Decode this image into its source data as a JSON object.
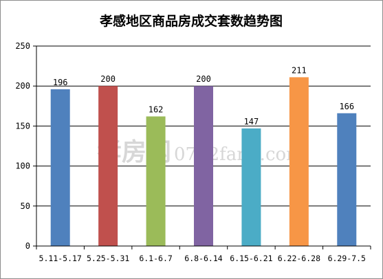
{
  "chart_data": {
    "type": "bar",
    "title": "孝感地区商品房成交套数趋势图",
    "categories": [
      "5.11-5.17",
      "5.25-5.31",
      "6.1-6.7",
      "6.8-6.14",
      "6.15-6.21",
      "6.22-6.28",
      "6.29-7.5"
    ],
    "values": [
      196,
      200,
      162,
      200,
      147,
      211,
      166
    ],
    "colors": [
      "#4f81bd",
      "#c0504d",
      "#9bbb59",
      "#8064a2",
      "#4bacc6",
      "#f79646",
      "#4f81bd"
    ],
    "ylim": [
      0,
      250
    ],
    "yticks": [
      0,
      50,
      100,
      150,
      200,
      250
    ],
    "grid": true,
    "legend": "none",
    "xlabel": "",
    "ylabel": ""
  },
  "watermark": {
    "cn": "孝房网",
    "en": "0712fang.com",
    "color": "#d7d7d7"
  }
}
